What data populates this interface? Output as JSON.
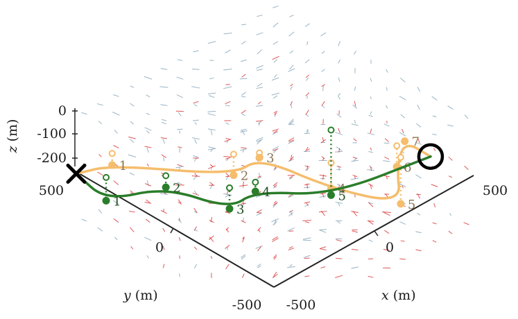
{
  "chart_data": {
    "type": "line",
    "title": "",
    "xlabel": {
      "var": "x",
      "unit": "(m)"
    },
    "ylabel": {
      "var": "y",
      "unit": "(m)"
    },
    "zlabel": {
      "var": "z",
      "unit": "(m)"
    },
    "xlim": [
      -500,
      500
    ],
    "ylim": [
      -500,
      500
    ],
    "zlim": [
      -250,
      0
    ],
    "x_ticks": [
      "-500",
      "0",
      "500"
    ],
    "y_ticks": [
      "-500",
      "0",
      "500"
    ],
    "z_ticks": [
      "0",
      "-100",
      "-200"
    ],
    "start_marker": "cross",
    "end_marker": "circle",
    "background": "3D vector field (arrows) over the x-y plane",
    "colors": {
      "green": "#2a7d2a",
      "orange": "#f5bd6c",
      "orange_label": "#8b7250",
      "green_label": "#1f4f1f",
      "field_red": "#d92a2a",
      "field_blue": "#7fa0b5",
      "axis": "#222222"
    },
    "series": [
      {
        "color": "green",
        "waypoints": [
          {
            "label": "1",
            "x": -430,
            "y": 420,
            "z": -110
          },
          {
            "label": "2",
            "x": -270,
            "y": 280,
            "z": -60
          },
          {
            "label": "3",
            "x": -110,
            "y": 120,
            "z": -150
          },
          {
            "label": "4",
            "x": -60,
            "y": 40,
            "z": -60
          },
          {
            "label": "5",
            "x": 220,
            "y": -60,
            "z": -160
          }
        ],
        "target_markers": [
          {
            "x": -430,
            "y": 420,
            "z": -10
          },
          {
            "x": -270,
            "y": 280,
            "z": -10
          },
          {
            "x": -110,
            "y": 120,
            "z": -60
          },
          {
            "x": -60,
            "y": 40,
            "z": -20
          },
          {
            "x": 220,
            "y": -60,
            "z": 120
          }
        ]
      },
      {
        "color": "orange",
        "waypoints": [
          {
            "label": "1",
            "x": -360,
            "y": 460,
            "z": -10
          },
          {
            "label": "2",
            "x": 70,
            "y": 280,
            "z": -170
          },
          {
            "label": "3",
            "x": 80,
            "y": 160,
            "z": -40
          },
          {
            "label": "4",
            "x": 260,
            "y": -20,
            "z": -170
          },
          {
            "label": "5",
            "x": 390,
            "y": -240,
            "z": -190
          },
          {
            "label": "6",
            "x": 400,
            "y": -210,
            "z": -50
          },
          {
            "label": "7",
            "x": 420,
            "y": -230,
            "z": 60
          }
        ],
        "target_markers": [
          {
            "x": -360,
            "y": 460,
            "z": 40
          },
          {
            "x": 70,
            "y": 280,
            "z": -80
          },
          {
            "x": 80,
            "y": 160,
            "z": -20
          },
          {
            "x": 260,
            "y": -20,
            "z": -60
          },
          {
            "x": 390,
            "y": -240,
            "z": 10
          },
          {
            "x": 400,
            "y": -210,
            "z": 40
          },
          {
            "x": 420,
            "y": -230,
            "z": 60
          }
        ]
      }
    ]
  }
}
